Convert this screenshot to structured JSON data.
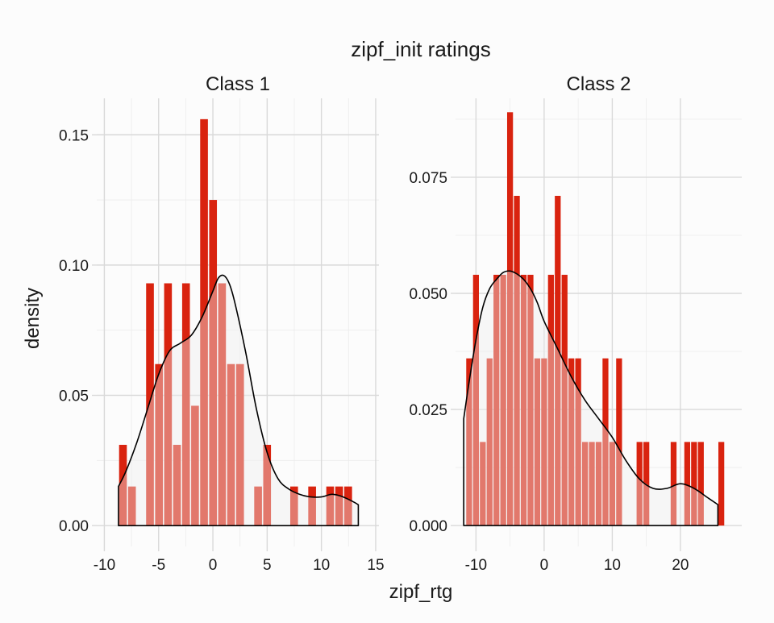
{
  "colors": {
    "bar": "#d9230f",
    "bar_light": "#e06a5c",
    "density_fill": "#ececec",
    "density_line": "#000000",
    "background": "#fcfcfc"
  },
  "chart_data": {
    "type": "bar",
    "title": "zipf_init ratings",
    "xlabel": "zipf_rtg",
    "ylabel": "density",
    "grid": true,
    "legend": "none",
    "panels": [
      {
        "name": "Class 1",
        "xlim": [
          -10.7,
          15.3
        ],
        "ylim": [
          -0.008,
          0.164
        ],
        "xticks": [
          -10,
          -5,
          0,
          5,
          10,
          15
        ],
        "yticks": [
          0.0,
          0.05,
          0.1,
          0.15
        ],
        "ytick_labels": [
          "0.00",
          "0.05",
          "0.10",
          "0.15"
        ],
        "bin_width": 0.83,
        "bin_start": -8.7,
        "histogram": [
          0.031,
          0.015,
          0,
          0.093,
          0.062,
          0.093,
          0.031,
          0.093,
          0.046,
          0.156,
          0.125,
          0.093,
          0.062,
          0.062,
          0,
          0.015,
          0.031,
          0,
          0,
          0.015,
          0,
          0.015,
          0,
          0.015,
          0.015,
          0.015
        ],
        "density_x": [
          -8.7,
          -8,
          -7,
          -6,
          -5,
          -4,
          -3,
          -2,
          -1,
          0,
          0.5,
          1,
          1.5,
          2,
          3,
          4,
          5,
          6,
          7,
          8,
          9,
          10,
          11,
          12,
          13,
          13.4
        ],
        "density_y": [
          0.015,
          0.021,
          0.032,
          0.045,
          0.058,
          0.067,
          0.07,
          0.073,
          0.08,
          0.09,
          0.095,
          0.096,
          0.093,
          0.086,
          0.067,
          0.045,
          0.028,
          0.018,
          0.014,
          0.012,
          0.011,
          0.011,
          0.012,
          0.011,
          0.009,
          0.008
        ]
      },
      {
        "name": "Class 2",
        "xlim": [
          -13,
          29
        ],
        "ylim": [
          -0.0045,
          0.092
        ],
        "xticks": [
          -10,
          0,
          10,
          20
        ],
        "yticks": [
          0.0,
          0.025,
          0.05,
          0.075
        ],
        "ytick_labels": [
          "0.000",
          "0.025",
          "0.050",
          "0.075"
        ],
        "bin_width": 1.0,
        "bin_start": -11.5,
        "histogram": [
          0.036,
          0.054,
          0.018,
          0.036,
          0.054,
          0.054,
          0.089,
          0.071,
          0.054,
          0.054,
          0.036,
          0.036,
          0.054,
          0.071,
          0.054,
          0.036,
          0.036,
          0.018,
          0.018,
          0.018,
          0.036,
          0.018,
          0.036,
          0,
          0,
          0.018,
          0.018,
          0,
          0,
          0,
          0.018,
          0,
          0.018,
          0.018,
          0.018,
          0,
          0,
          0.018
        ],
        "density_x": [
          -11.8,
          -11,
          -10,
          -9,
          -8,
          -7,
          -6,
          -5,
          -4,
          -3,
          -2,
          -1,
          0,
          2,
          4,
          6,
          8,
          10,
          12,
          14,
          16,
          18,
          20,
          22,
          24,
          25.5
        ],
        "density_y": [
          0.023,
          0.031,
          0.04,
          0.047,
          0.051,
          0.053,
          0.0545,
          0.0548,
          0.0542,
          0.053,
          0.051,
          0.048,
          0.044,
          0.038,
          0.032,
          0.027,
          0.023,
          0.019,
          0.014,
          0.01,
          0.008,
          0.008,
          0.009,
          0.008,
          0.006,
          0.0045
        ]
      }
    ]
  }
}
